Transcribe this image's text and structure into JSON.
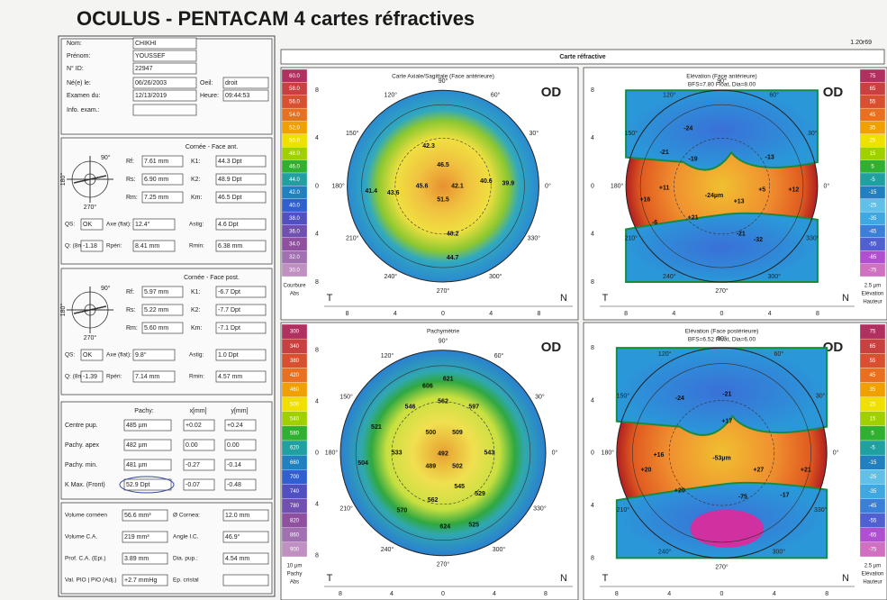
{
  "header": {
    "title": "OCULUS - PENTACAM  4 cartes réfractives",
    "version": "1.20r69"
  },
  "patient": [
    {
      "label": "Nom:",
      "value": "CHIKHI"
    },
    {
      "label": "Prénom:",
      "value": "YOUSSEF"
    },
    {
      "label": "N° ID:",
      "value": "22947"
    },
    {
      "label": "Né(e) le:",
      "value": "06/26/2003"
    },
    {
      "label": "Oeil:",
      "value": "droit"
    },
    {
      "label": "Examen du:",
      "value": "12/13/2019"
    },
    {
      "label": "Heure:",
      "value": "09:44:53"
    },
    {
      "label": "Info. exam.:"
    }
  ],
  "cornea_sections": [
    {
      "title": "Cornée - Face ant.",
      "diagram_labels": [
        "90°",
        "180°",
        "270°"
      ],
      "items": [
        {
          "label": "Rf:",
          "value": "7.61 mm"
        },
        {
          "label": "K1:",
          "value": "44.3 Dpt"
        },
        {
          "label": "Rs:",
          "value": "6.90 mm"
        },
        {
          "label": "K2:",
          "value": "48.9 Dpt"
        },
        {
          "label": "Rm:",
          "value": "7.25 mm"
        },
        {
          "label": "Km:",
          "value": "46.5 Dpt"
        },
        {
          "label": "QS:",
          "value": "OK"
        },
        {
          "label": "Axe (flat):",
          "value": "12.4°"
        },
        {
          "label": "Astig:",
          "value": "4.6 Dpt"
        },
        {
          "label": "Q: (8mm)",
          "value": "-1.18"
        },
        {
          "label": "Rpéri:",
          "value": "8.41 mm"
        },
        {
          "label": "Rmin:",
          "value": "6.38 mm"
        }
      ]
    },
    {
      "title": "Cornée - Face post.",
      "diagram_labels": [
        "90°",
        "180°",
        "270°"
      ],
      "items": [
        {
          "label": "Rf:",
          "value": "5.97 mm"
        },
        {
          "label": "K1:",
          "value": "-6.7 Dpt"
        },
        {
          "label": "Rs:",
          "value": "5.22 mm"
        },
        {
          "label": "K2:",
          "value": "-7.7 Dpt"
        },
        {
          "label": "Rm:",
          "value": "5.60 mm"
        },
        {
          "label": "Km:",
          "value": "-7.1 Dpt"
        },
        {
          "label": "QS:",
          "value": "OK"
        },
        {
          "label": "Axe (flat):",
          "value": "9.8°"
        },
        {
          "label": "Astig:",
          "value": "1.0 Dpt"
        },
        {
          "label": "Q: (8mm)",
          "value": "-1.39"
        },
        {
          "label": "Rpéri:",
          "value": "7.14 mm"
        },
        {
          "label": "Rmin:",
          "value": "4.57 mm"
        }
      ]
    }
  ],
  "pachy": {
    "headers": [
      "Pachy:",
      "x[mm]",
      "y[mm]"
    ],
    "rows": [
      {
        "label": "Centre pup.",
        "value": "485 µm",
        "x": "+0.02",
        "y": "+0.24"
      },
      {
        "label": "Pachy. apex",
        "value": "482 µm",
        "x": "0.00",
        "y": "0.00"
      },
      {
        "label": "Pachy. min.",
        "value": "481 µm",
        "x": "-0.27",
        "y": "-0.14"
      },
      {
        "label": "K Max. (Front)",
        "value": "52.9 Dpt",
        "x": "-0.07",
        "y": "-0.48"
      }
    ]
  },
  "summary": [
    {
      "left": {
        "label": "Volume cornéen",
        "value": "56.6 mm³"
      },
      "right": {
        "label": "Ø Cornea:",
        "value": "12.0 mm"
      }
    },
    {
      "left": {
        "label": "Volume C.A.",
        "value": "219 mm³"
      },
      "right": {
        "label": "Angle I.C.",
        "value": "46.9°"
      }
    },
    {
      "left": {
        "label": "Prof. C.A. (Epi.)",
        "value": "3.89 mm"
      },
      "right": {
        "label": "Dia. pup.:",
        "value": "4.54 mm"
      }
    },
    {
      "left": {
        "label": "Val. PIO | PIO (Adj.)",
        "value": "+2.7 mmHg"
      },
      "right": {
        "label": "Ep. cristal"
      }
    }
  ],
  "maps_panel": {
    "title": "Carte réfractive",
    "axis_ticks": [
      "8",
      "4",
      "0",
      "4",
      "8"
    ],
    "angles": [
      "90°",
      "60°",
      "30°",
      "0°",
      "330°",
      "300°",
      "270°",
      "240°",
      "210°",
      "180°",
      "150°",
      "120°"
    ],
    "temporal": "T",
    "nasal": "N",
    "maps": [
      {
        "title": "Carte Axiale/Sagittale (Face antérieure)",
        "eye": "OD",
        "scale": [
          "60.0",
          "58.0",
          "56.0",
          "54.0",
          "52.0",
          "50.0",
          "48.0",
          "46.0",
          "44.0",
          "42.0",
          "40.0",
          "38.0",
          "36.0",
          "34.0",
          "32.0",
          "30.0"
        ],
        "scale_footer": [
          "Courbure",
          "Abs"
        ],
        "values": [
          "42.3",
          "46.5",
          "41.4",
          "43.6",
          "45.6",
          "42.1",
          "40.6",
          "39.9",
          "51.5",
          "48.2",
          "44.7"
        ]
      },
      {
        "title": "Elévation (Face antérieure)",
        "subtitle": "BFS=7.80 Float, Dia=8.00",
        "eye": "OD",
        "scale": [
          "75",
          "65",
          "55",
          "45",
          "35",
          "25",
          "15",
          "5",
          "-5",
          "-15",
          "-25",
          "-35",
          "-45",
          "-55",
          "-65",
          "-75"
        ],
        "scale_footer": [
          "2.5 µm",
          "Elévation",
          "Hauteur"
        ],
        "values": [
          "-24",
          "-21",
          "-19",
          "-13",
          "+11",
          "+16",
          "+12",
          "-24µm",
          "+13",
          "+5",
          "+21",
          "-6",
          "-21",
          "-32"
        ]
      },
      {
        "title": "Pachymétrie",
        "eye": "OD",
        "scale": [
          "300",
          "340",
          "380",
          "420",
          "460",
          "500",
          "540",
          "580",
          "620",
          "660",
          "700",
          "740",
          "780",
          "820",
          "860",
          "900"
        ],
        "scale_footer": [
          "10 µm",
          "Pachy",
          "Abs"
        ],
        "values": [
          "606",
          "621",
          "546",
          "562",
          "597",
          "521",
          "500",
          "509",
          "533",
          "492",
          "543",
          "504",
          "489",
          "502",
          "529",
          "562",
          "545",
          "570",
          "624",
          "525"
        ]
      },
      {
        "title": "Elévation (Face postérieure)",
        "subtitle": "BFS=6.52 Float, Dia=6.00",
        "eye": "OD",
        "scale": [
          "75",
          "65",
          "55",
          "45",
          "35",
          "25",
          "15",
          "5",
          "-5",
          "-15",
          "-25",
          "-35",
          "-45",
          "-55",
          "-65",
          "-75"
        ],
        "scale_footer": [
          "2.5 µm",
          "Elévation",
          "Hauteur"
        ],
        "values": [
          "-24",
          "-21",
          "+17",
          "+16",
          "-53µm",
          "+20",
          "+27",
          "+21",
          "+20",
          "-75",
          "-17"
        ]
      }
    ]
  }
}
